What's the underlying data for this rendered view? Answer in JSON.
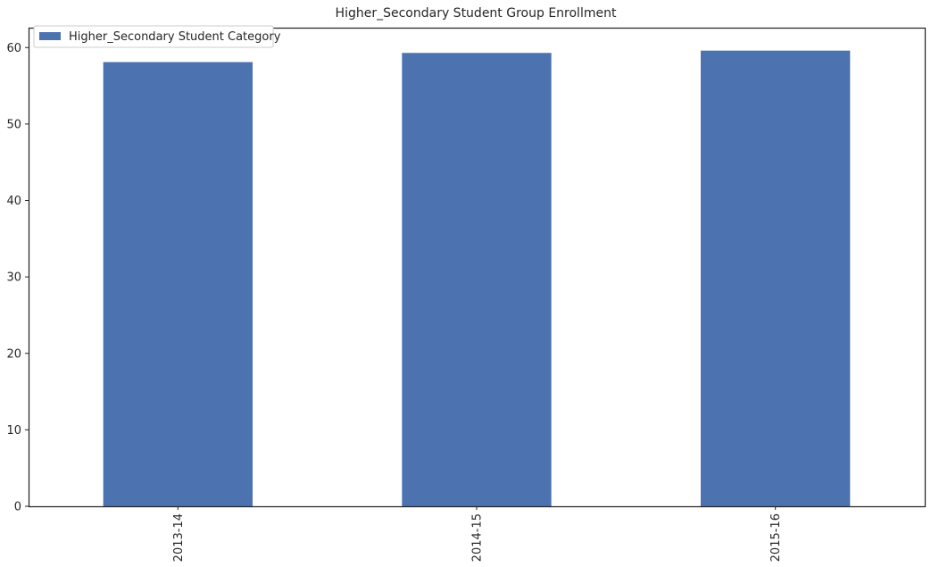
{
  "chart_data": {
    "type": "bar",
    "title": "Higher_Secondary Student Group Enrollment",
    "xlabel": "",
    "ylabel": "",
    "categories": [
      "2013-14",
      "2014-15",
      "2015-16"
    ],
    "series": [
      {
        "name": "Higher_Secondary Student Category",
        "values": [
          58.1,
          59.3,
          59.6
        ],
        "color": "#4c72b0"
      }
    ],
    "ylim": [
      0,
      62.6
    ],
    "yticks": [
      0,
      10,
      20,
      30,
      40,
      50,
      60
    ],
    "grid": false,
    "legend_position": "top-left"
  }
}
